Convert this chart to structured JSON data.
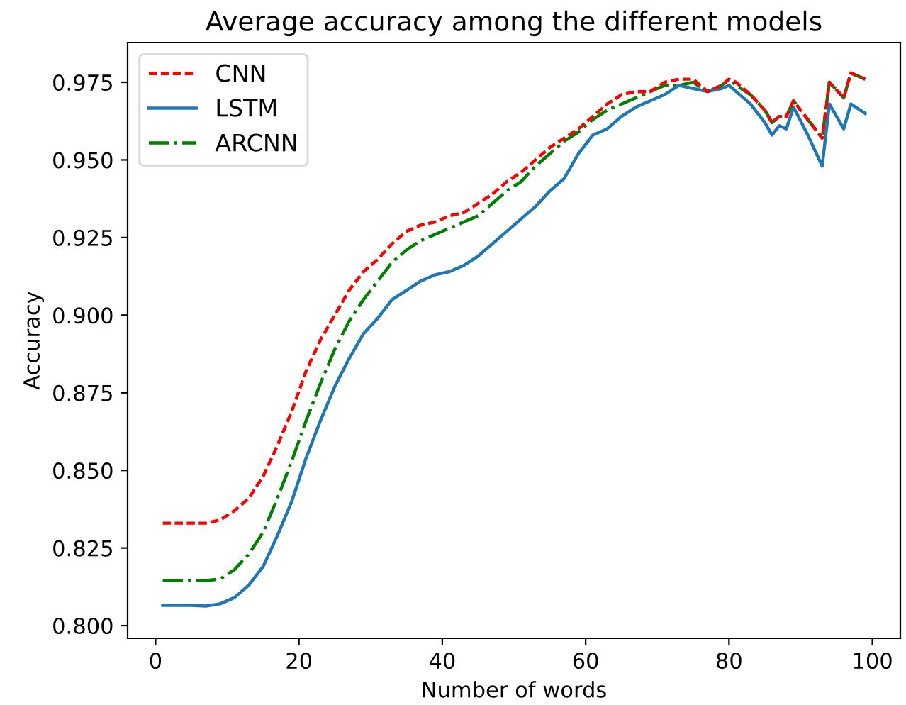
{
  "chart_data": {
    "type": "line",
    "title": "Average accuracy among the different models",
    "xlabel": "Number of words",
    "ylabel": "Accuracy",
    "x": [
      1,
      3,
      5,
      7,
      9,
      11,
      13,
      15,
      17,
      19,
      21,
      23,
      25,
      27,
      29,
      31,
      33,
      35,
      37,
      39,
      41,
      43,
      45,
      47,
      49,
      51,
      53,
      55,
      57,
      59,
      61,
      63,
      65,
      67,
      69,
      71,
      73,
      75,
      77,
      79,
      80,
      81,
      83,
      85,
      86,
      87,
      88,
      89,
      91,
      93,
      94,
      96,
      97,
      99
    ],
    "series": [
      {
        "name": "CNN",
        "color": "#ff0000",
        "line_style": "dashed",
        "values": [
          0.833,
          0.833,
          0.833,
          0.833,
          0.834,
          0.837,
          0.841,
          0.848,
          0.858,
          0.869,
          0.882,
          0.892,
          0.9,
          0.908,
          0.914,
          0.918,
          0.923,
          0.927,
          0.929,
          0.93,
          0.932,
          0.933,
          0.936,
          0.939,
          0.943,
          0.946,
          0.95,
          0.954,
          0.957,
          0.96,
          0.964,
          0.968,
          0.971,
          0.972,
          0.972,
          0.975,
          0.976,
          0.976,
          0.972,
          0.974,
          0.976,
          0.975,
          0.971,
          0.966,
          0.962,
          0.964,
          0.964,
          0.969,
          0.963,
          0.957,
          0.975,
          0.97,
          0.978,
          0.976
        ]
      },
      {
        "name": "LSTM",
        "color": "#1f77b4",
        "line_style": "solid",
        "values": [
          0.8065,
          0.8065,
          0.8065,
          0.8063,
          0.807,
          0.809,
          0.813,
          0.819,
          0.829,
          0.84,
          0.854,
          0.866,
          0.877,
          0.886,
          0.894,
          0.899,
          0.905,
          0.908,
          0.911,
          0.913,
          0.914,
          0.916,
          0.919,
          0.923,
          0.927,
          0.931,
          0.935,
          0.94,
          0.944,
          0.952,
          0.958,
          0.96,
          0.964,
          0.967,
          0.969,
          0.971,
          0.974,
          0.973,
          0.972,
          0.973,
          0.974,
          0.972,
          0.968,
          0.962,
          0.958,
          0.961,
          0.96,
          0.967,
          0.958,
          0.948,
          0.968,
          0.96,
          0.968,
          0.965
        ]
      },
      {
        "name": "ARCNN",
        "color": "#008000",
        "line_style": "dashdot",
        "values": [
          0.8145,
          0.8145,
          0.8145,
          0.8145,
          0.815,
          0.818,
          0.823,
          0.83,
          0.841,
          0.853,
          0.866,
          0.878,
          0.889,
          0.898,
          0.905,
          0.911,
          0.917,
          0.921,
          0.924,
          0.926,
          0.928,
          0.93,
          0.932,
          0.936,
          0.94,
          0.943,
          0.948,
          0.952,
          0.956,
          0.959,
          0.963,
          0.966,
          0.968,
          0.97,
          0.972,
          0.974,
          0.974,
          0.975,
          0.972,
          0.974,
          0.976,
          0.974,
          0.971,
          0.966,
          0.962,
          0.964,
          0.964,
          0.969,
          0.963,
          0.957,
          0.975,
          0.97,
          0.978,
          0.976
        ]
      }
    ],
    "xlim": [
      -3.9,
      103.9
    ],
    "ylim": [
      0.7959,
      0.9878
    ],
    "xticks": [
      0,
      20,
      40,
      60,
      80,
      100
    ],
    "yticks": [
      {
        "value": 0.8,
        "label": "0.800"
      },
      {
        "value": 0.825,
        "label": "0.825"
      },
      {
        "value": 0.85,
        "label": "0.850"
      },
      {
        "value": 0.875,
        "label": "0.875"
      },
      {
        "value": 0.9,
        "label": "0.900"
      },
      {
        "value": 0.925,
        "label": "0.925"
      },
      {
        "value": 0.95,
        "label": "0.950"
      },
      {
        "value": 0.975,
        "label": "0.975"
      }
    ],
    "legend": "top left",
    "grid": false,
    "marker": "none"
  }
}
